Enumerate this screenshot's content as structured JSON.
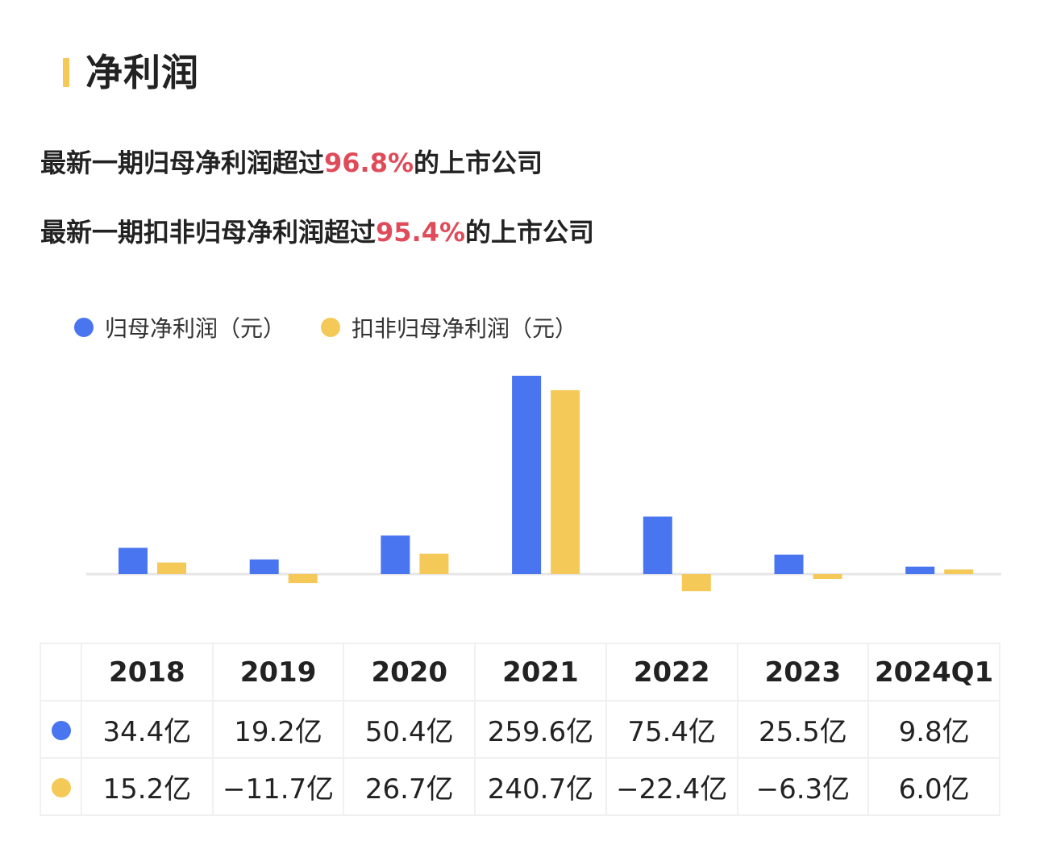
{
  "title": "净利润",
  "stats": [
    {
      "prefix": "最新一期归母净利润超过",
      "value": "96.8%",
      "suffix": "的上市公司"
    },
    {
      "prefix": "最新一期扣非归母净利润超过",
      "value": "95.4%",
      "suffix": "的上市公司"
    }
  ],
  "colors": {
    "series1": "#4a75f0",
    "series2": "#f5c957",
    "highlight": "#e04b5a",
    "title_bar": "#f5c957"
  },
  "legend": {
    "series1": "归母净利润（元）",
    "series2": "扣非归母净利润（元）"
  },
  "chart_data": {
    "type": "bar",
    "categories": [
      "2018",
      "2019",
      "2020",
      "2021",
      "2022",
      "2023",
      "2024Q1"
    ],
    "series": [
      {
        "name": "归母净利润（元）",
        "unit": "亿",
        "values": [
          34.4,
          19.2,
          50.4,
          259.6,
          75.4,
          25.5,
          9.8
        ]
      },
      {
        "name": "扣非归母净利润（元）",
        "unit": "亿",
        "values": [
          15.2,
          -11.7,
          26.7,
          240.7,
          -22.4,
          -6.3,
          6.0
        ]
      }
    ],
    "title": "",
    "xlabel": "",
    "ylabel": "",
    "ylim": [
      -30,
      265
    ],
    "grid": false,
    "legend_position": "top-left"
  },
  "table": {
    "header": [
      "2018",
      "2019",
      "2020",
      "2021",
      "2022",
      "2023",
      "2024Q1"
    ],
    "rows": [
      [
        "34.4亿",
        "19.2亿",
        "50.4亿",
        "259.6亿",
        "75.4亿",
        "25.5亿",
        "9.8亿"
      ],
      [
        "15.2亿",
        "−11.7亿",
        "26.7亿",
        "240.7亿",
        "−22.4亿",
        "−6.3亿",
        "6.0亿"
      ]
    ]
  }
}
